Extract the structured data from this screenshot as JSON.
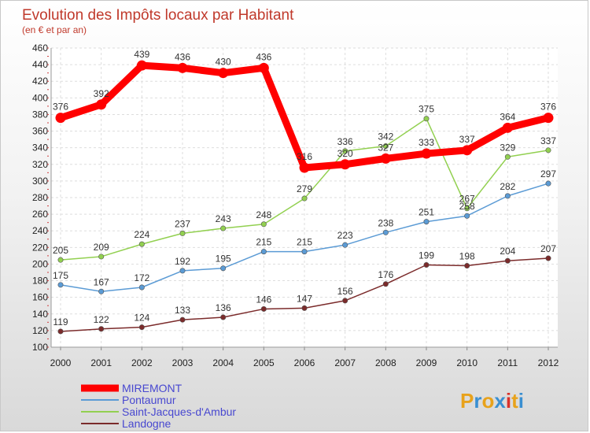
{
  "chart_data": {
    "type": "line",
    "title": "Evolution des Impôts locaux par Habitant",
    "subtitle": "(en € et par an)",
    "xlabel": "",
    "ylabel": "",
    "x": [
      "2000",
      "2001",
      "2002",
      "2003",
      "2004",
      "2005",
      "2006",
      "2007",
      "2008",
      "2009",
      "2010",
      "2011",
      "2012"
    ],
    "ylim": [
      100,
      460
    ],
    "y_ticks": [
      100,
      120,
      140,
      160,
      180,
      200,
      220,
      240,
      260,
      280,
      300,
      320,
      340,
      360,
      380,
      400,
      420,
      440,
      460
    ],
    "grid": true,
    "legend_position": "bottom-left",
    "series": [
      {
        "name": "MIREMONT",
        "color": "#ff0000",
        "values": [
          376,
          392,
          439,
          436,
          430,
          436,
          316,
          320,
          327,
          333,
          337,
          364,
          376
        ]
      },
      {
        "name": "Pontaumur",
        "color": "#5b9bd5",
        "values": [
          175,
          167,
          172,
          192,
          195,
          215,
          215,
          223,
          238,
          251,
          258,
          282,
          297
        ]
      },
      {
        "name": "Saint-Jacques-d'Ambur",
        "color": "#92d050",
        "values": [
          205,
          209,
          224,
          237,
          243,
          248,
          279,
          336,
          342,
          375,
          267,
          329,
          337
        ]
      },
      {
        "name": "Landogne",
        "color": "#7b2b2b",
        "values": [
          119,
          122,
          124,
          133,
          136,
          146,
          147,
          156,
          176,
          199,
          198,
          204,
          207
        ]
      }
    ]
  },
  "logo": {
    "text": "Proxiti",
    "letter_colors": [
      "#e8a21b",
      "#3a8fd1",
      "#e8a21b",
      "#3a8fd1",
      "#d9322b",
      "#e8a21b",
      "#3a8fd1"
    ]
  }
}
